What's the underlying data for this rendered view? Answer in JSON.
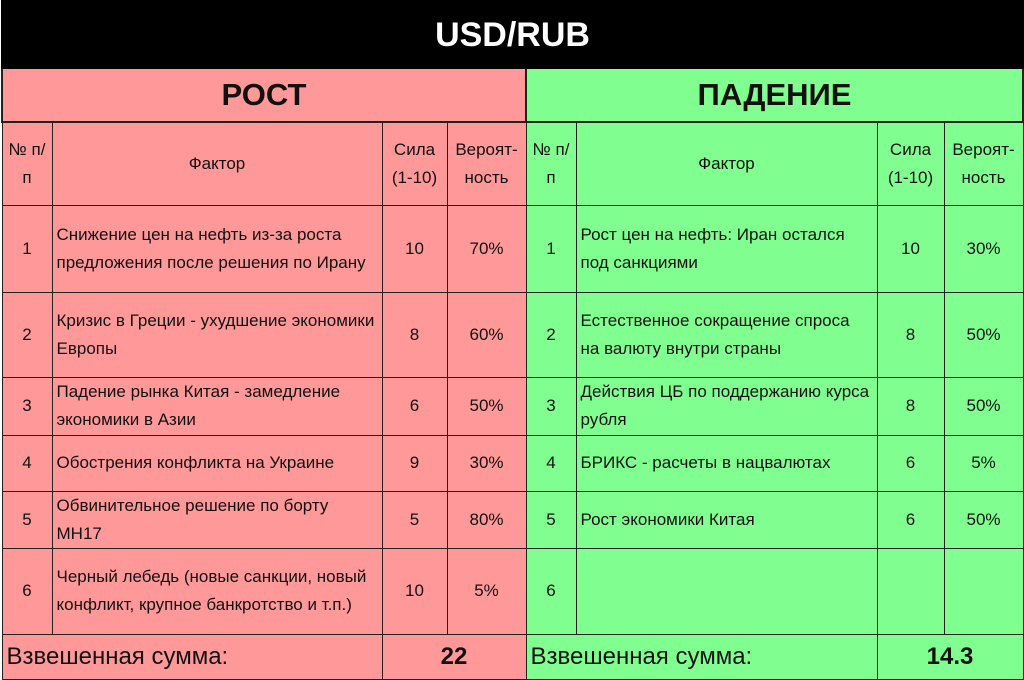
{
  "title": "USD/RUB",
  "headers": {
    "num": "№ п/п",
    "factor": "Фактор",
    "strength": "Сила (1-10)",
    "prob": "Вероят-ность"
  },
  "colors": {
    "rise": "#ff9999",
    "fall": "#80ff90",
    "title_bg": "#000000"
  },
  "rise": {
    "label": "РОСТ",
    "rows": [
      {
        "n": "1",
        "factor": "Снижение цен на нефть из-за роста предложения после решения по Ирану",
        "strength": "10",
        "prob": "70%"
      },
      {
        "n": "2",
        "factor": "Кризис в Греции - ухудшение экономики Европы",
        "strength": "8",
        "prob": "60%"
      },
      {
        "n": "3",
        "factor": "Падение рынка Китая - замедление экономики в Азии",
        "strength": "6",
        "prob": "50%"
      },
      {
        "n": "4",
        "factor": "Обострения конфликта на Украине",
        "strength": "9",
        "prob": "30%"
      },
      {
        "n": "5",
        "factor": "Обвинительное решение по борту МН17",
        "strength": "5",
        "prob": "80%"
      },
      {
        "n": "6",
        "factor": "Черный лебедь (новые санкции, новый конфликт, крупное банкротство и т.п.)",
        "strength": "10",
        "prob": "5%"
      }
    ],
    "sum_label": "Взвешенная сумма:",
    "sum_value": "22"
  },
  "fall": {
    "label": "ПАДЕНИЕ",
    "rows": [
      {
        "n": "1",
        "factor": "Рост цен на нефть: Иран остался под санкциями",
        "strength": "10",
        "prob": "30%"
      },
      {
        "n": "2",
        "factor": "Естественное сокращение спроса на валюту внутри страны",
        "strength": "8",
        "prob": "50%"
      },
      {
        "n": "3",
        "factor": "Действия ЦБ по поддержанию курса рубля",
        "strength": "8",
        "prob": "50%"
      },
      {
        "n": "4",
        "factor": "БРИКС - расчеты в нацвалютах",
        "strength": "6",
        "prob": "5%"
      },
      {
        "n": "5",
        "factor": "Рост экономики Китая",
        "strength": "6",
        "prob": "50%"
      },
      {
        "n": "6",
        "factor": "",
        "strength": "",
        "prob": ""
      }
    ],
    "sum_label": "Взвешенная сумма:",
    "sum_value": "14.3"
  }
}
